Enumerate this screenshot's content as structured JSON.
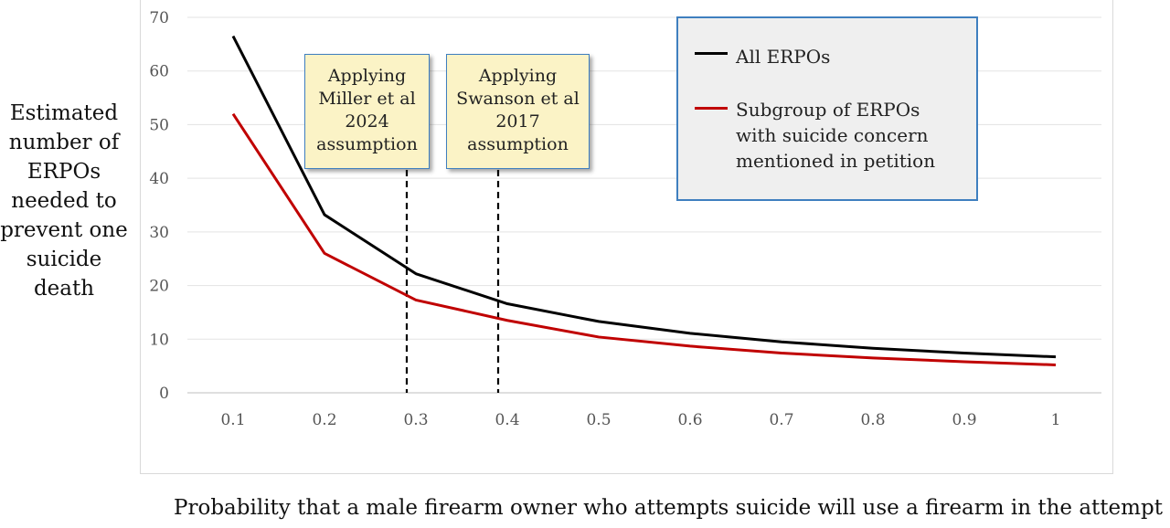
{
  "chart_data": {
    "type": "line",
    "x": [
      0.1,
      0.2,
      0.3,
      0.4,
      0.5,
      0.6,
      0.7,
      0.8,
      0.9,
      1
    ],
    "x_tick_labels": [
      "0.1",
      "0.2",
      "0.3",
      "0.4",
      "0.5",
      "0.6",
      "0.7",
      "0.8",
      "0.9",
      "1"
    ],
    "y_ticks": [
      0,
      10,
      20,
      30,
      40,
      50,
      60,
      70
    ],
    "ylim": [
      0,
      70
    ],
    "xlabel": "Probability that a male firearm owner who attempts suicide will use a firearm in the attempt",
    "ylabel_lines": [
      "Estimated",
      "number of",
      "ERPOs",
      "needed to",
      "prevent one",
      "suicide",
      "death"
    ],
    "grid": true,
    "series": [
      {
        "name": "All ERPOs",
        "color": "#000000",
        "values": [
          66.5,
          33.2,
          22.2,
          16.6,
          13.3,
          11.1,
          9.5,
          8.3,
          7.4,
          6.7
        ]
      },
      {
        "name": "Subgroup of ERPOs with suicide concern mentioned in petition",
        "color": "#c00000",
        "values": [
          52.0,
          26.0,
          17.3,
          13.5,
          10.4,
          8.7,
          7.4,
          6.5,
          5.8,
          5.2
        ]
      }
    ],
    "annotations": [
      {
        "x": 0.29,
        "lines": [
          "Applying",
          "Miller et al",
          "2024",
          "assumption"
        ]
      },
      {
        "x": 0.39,
        "lines": [
          "Applying",
          "Swanson et al",
          "2017",
          "assumption"
        ]
      }
    ],
    "legend": {
      "placement": "top-right",
      "items": [
        {
          "lines": [
            "All ERPOs"
          ],
          "color": "#000000"
        },
        {
          "lines": [
            "Subgroup of ERPOs",
            "with suicide concern",
            "mentioned in petition"
          ],
          "color": "#c00000"
        }
      ]
    }
  }
}
